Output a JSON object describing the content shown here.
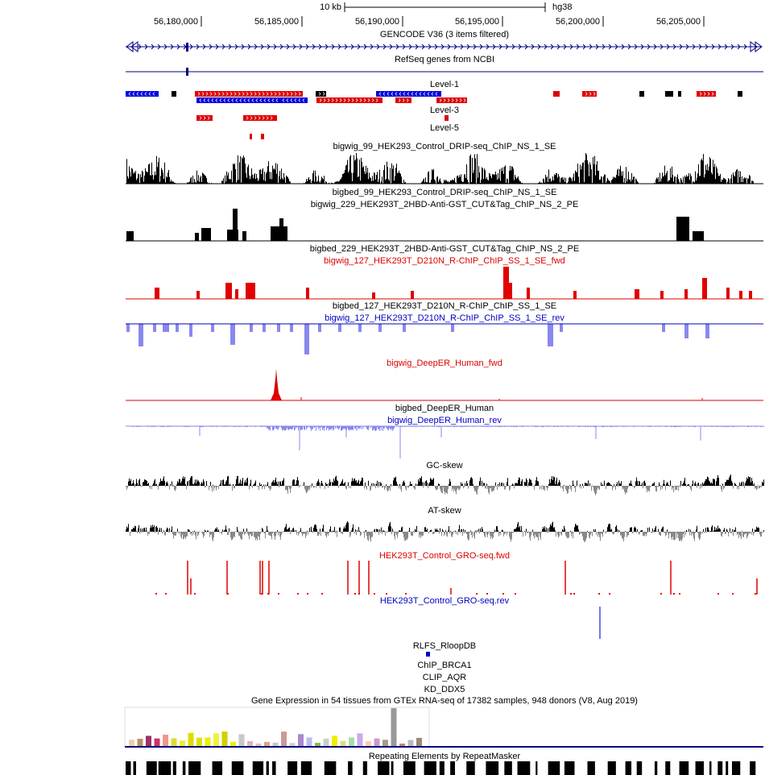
{
  "ruler": {
    "scale_label": "10 kb",
    "assembly": "hg38",
    "positions": [
      "56,180,000",
      "56,185,000",
      "56,190,000",
      "56,195,000",
      "56,200,000",
      "56,205,000"
    ]
  },
  "track_labels": [
    "GENCODE V36 (3 items filtered)",
    "RefSeq genes from NCBI",
    "Level-1",
    "Level-3",
    "Level-5",
    "bigwig_99_HEK293_Control_DRIP-seq_ChIP_NS_1_SE",
    "bigbed_99_HEK293_Control_DRIP-seq_ChIP_NS_1_SE",
    "bigwig_229_HEK293T_2HBD-Anti-GST_CUT&Tag_ChIP_NS_2_PE",
    "bigbed_229_HEK293T_2HBD-Anti-GST_CUT&Tag_ChIP_NS_2_PE",
    "bigwig_127_HEK293T_D210N_R-ChIP_ChIP_SS_1_SE_fwd",
    "bigbed_127_HEK293T_D210N_R-ChIP_ChIP_SS_1_SE",
    "bigwig_127_HEK293T_D210N_R-ChIP_ChIP_SS_1_SE_rev",
    "bigwig_DeepER_Human_fwd",
    "bigbed_DeepER_Human",
    "bigwig_DeepER_Human_rev",
    "GC-skew",
    "AT-skew",
    "HEK293T_Control_GRO-seq.fwd",
    "HEK293T_Control_GRO-seq.rev",
    "RLFS_RloopDB",
    "ChIP_BRCA1",
    "CLIP_AQR",
    "KD_DDX5",
    "Gene Expression in 54 tissues from GTEx RNA-seq of 17382 samples, 948 donors (V8, Aug 2019)",
    "Repeating Elements by RepeatMasker"
  ]
}
